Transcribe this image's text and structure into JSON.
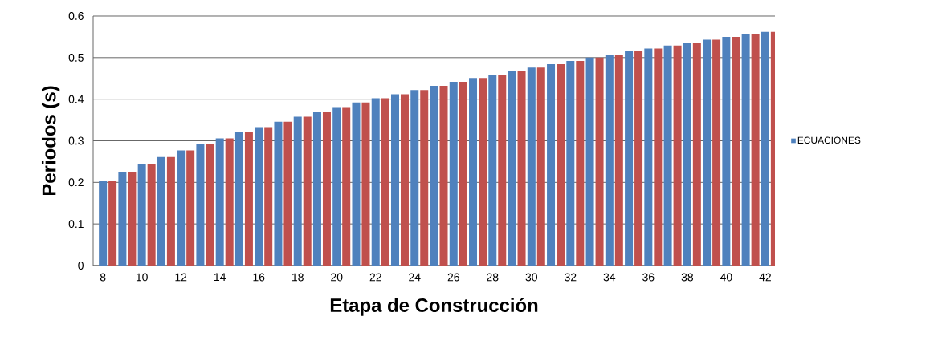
{
  "chart_data": {
    "type": "bar",
    "xlabel": "Etapa de Construcción",
    "ylabel": "Periodos (s)",
    "categories": [
      "8",
      null,
      "10",
      null,
      "12",
      null,
      "14",
      null,
      "16",
      null,
      "18",
      null,
      "20",
      null,
      "22",
      null,
      "24",
      null,
      "26",
      null,
      "28",
      null,
      "30",
      null,
      "32",
      null,
      "34",
      null,
      "36",
      null,
      "38",
      null,
      "40",
      null,
      "42"
    ],
    "series": [
      {
        "name": "ECUACIONES",
        "color": "#4f81bd",
        "values": [
          0.204,
          0.224,
          0.243,
          0.261,
          0.277,
          0.292,
          0.306,
          0.32,
          0.333,
          0.346,
          0.358,
          0.37,
          0.381,
          0.392,
          0.402,
          0.412,
          0.422,
          0.432,
          0.442,
          0.451,
          0.459,
          0.468,
          0.476,
          0.484,
          0.492,
          0.5,
          0.507,
          0.515,
          0.522,
          0.529,
          0.536,
          0.543,
          0.55,
          0.556,
          0.562
        ]
      },
      {
        "color": "#c0504d",
        "values": [
          0.204,
          0.224,
          0.243,
          0.261,
          0.277,
          0.292,
          0.306,
          0.32,
          0.333,
          0.346,
          0.358,
          0.37,
          0.381,
          0.392,
          0.402,
          0.412,
          0.422,
          0.432,
          0.442,
          0.451,
          0.459,
          0.468,
          0.476,
          0.484,
          0.492,
          0.5,
          0.507,
          0.515,
          0.522,
          0.529,
          0.536,
          0.543,
          0.55,
          0.556,
          0.562
        ]
      }
    ],
    "ylim": [
      0,
      0.6
    ],
    "yticks": [
      0,
      0.1,
      0.2,
      0.3,
      0.4,
      0.5,
      0.6
    ],
    "grid": "y",
    "legend": "right"
  }
}
